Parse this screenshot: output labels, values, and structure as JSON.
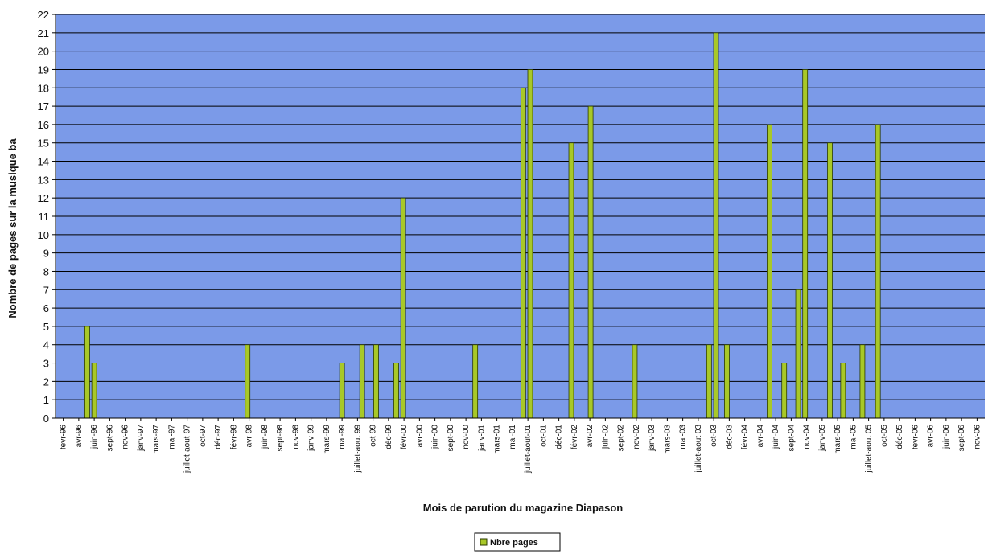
{
  "chart_data": {
    "type": "bar",
    "xlabel": "Mois de parution du magazine Diapason",
    "ylabel": "Nombre de pages sur la musique ba",
    "ylim": [
      0,
      22
    ],
    "yticks": [
      "0",
      "1",
      "2",
      "3",
      "4",
      "5",
      "6",
      "7",
      "8",
      "9",
      "10",
      "11",
      "12",
      "13",
      "14",
      "15",
      "16",
      "17",
      "18",
      "19",
      "20",
      "21",
      "22"
    ],
    "grid": true,
    "legend_position": "bottom-center",
    "colors": {
      "plot_bg": "#7b9ae8",
      "bar": "#a8c828",
      "grid": "#000000"
    },
    "categories": [
      "févr-96",
      "avr-96",
      "juin-96",
      "sept-96",
      "nov-96",
      "janv-97",
      "mars-97",
      "mai-97",
      "juillet-aout-97",
      "oct-97",
      "déc-97",
      "févr-98",
      "avr-98",
      "juin-98",
      "sept-98",
      "nov-98",
      "janv-99",
      "mars-99",
      "mai-99",
      "juillet-aout 99",
      "oct-99",
      "déc-99",
      "févr-00",
      "avr-00",
      "juin-00",
      "sept-00",
      "nov-00",
      "janv-01",
      "mars-01",
      "mai-01",
      "juillet-aout-01",
      "oct-01",
      "déc-01",
      "févr-02",
      "avr-02",
      "juin-02",
      "sept-02",
      "nov-02",
      "janv-03",
      "mars-03",
      "mai-03",
      "juillet-aout 03",
      "oct-03",
      "déc-03",
      "févr-04",
      "avr-04",
      "juin-04",
      "sept-04",
      "nov-04",
      "janv-05",
      "mars-05",
      "mai-05",
      "juillet-aout 05",
      "oct-05",
      "déc-05",
      "févr-06",
      "avr-06",
      "juin-06",
      "sept-06",
      "nov-06"
    ],
    "series": [
      {
        "name": "Nbre pages",
        "points": [
          {
            "x": 1.55,
            "y": 5
          },
          {
            "x": 2.0,
            "y": 3
          },
          {
            "x": 11.9,
            "y": 4
          },
          {
            "x": 18.0,
            "y": 3
          },
          {
            "x": 19.3,
            "y": 4
          },
          {
            "x": 20.2,
            "y": 4
          },
          {
            "x": 21.5,
            "y": 3
          },
          {
            "x": 21.95,
            "y": 12
          },
          {
            "x": 26.6,
            "y": 4
          },
          {
            "x": 29.7,
            "y": 18
          },
          {
            "x": 30.15,
            "y": 19
          },
          {
            "x": 32.8,
            "y": 15
          },
          {
            "x": 34.05,
            "y": 17
          },
          {
            "x": 36.9,
            "y": 4
          },
          {
            "x": 41.7,
            "y": 4
          },
          {
            "x": 42.15,
            "y": 21
          },
          {
            "x": 42.85,
            "y": 4
          },
          {
            "x": 45.6,
            "y": 16
          },
          {
            "x": 46.55,
            "y": 3
          },
          {
            "x": 47.45,
            "y": 7
          },
          {
            "x": 47.9,
            "y": 19
          },
          {
            "x": 49.5,
            "y": 15
          },
          {
            "x": 50.35,
            "y": 3
          },
          {
            "x": 51.6,
            "y": 4
          },
          {
            "x": 52.6,
            "y": 16
          }
        ]
      }
    ]
  }
}
